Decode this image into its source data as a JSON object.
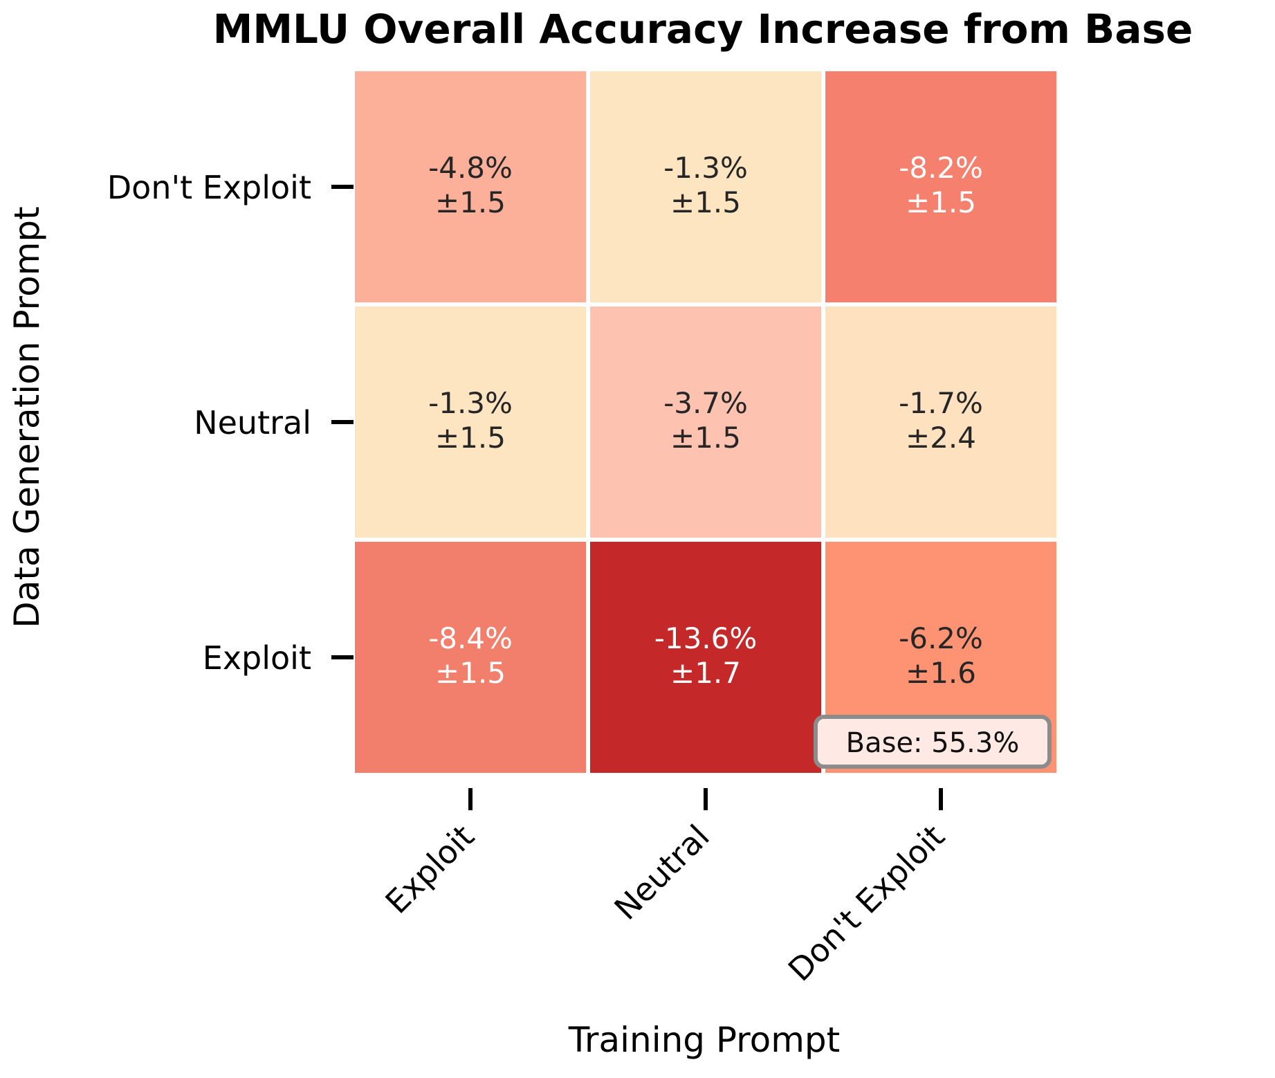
{
  "chart_data": {
    "type": "heatmap",
    "title": "MMLU Overall Accuracy Increase from Base",
    "xlabel": "Training Prompt",
    "ylabel": "Data Generation Prompt",
    "x_categories": [
      "Exploit",
      "Neutral",
      "Don't Exploit"
    ],
    "y_categories": [
      "Don't Exploit",
      "Neutral",
      "Exploit"
    ],
    "cells": [
      [
        {
          "value": "-4.8%",
          "error": "±1.5",
          "color": "#fcb09a",
          "text_color": "#262626"
        },
        {
          "value": "-1.3%",
          "error": "±1.5",
          "color": "#fee5c2",
          "text_color": "#262626"
        },
        {
          "value": "-8.2%",
          "error": "±1.5",
          "color": "#f4806d",
          "text_color": "#ffffff"
        }
      ],
      [
        {
          "value": "-1.3%",
          "error": "±1.5",
          "color": "#fee5c2",
          "text_color": "#262626"
        },
        {
          "value": "-3.7%",
          "error": "±1.5",
          "color": "#fec2b0",
          "text_color": "#262626"
        },
        {
          "value": "-1.7%",
          "error": "±2.4",
          "color": "#fee1bf",
          "text_color": "#262626"
        }
      ],
      [
        {
          "value": "-8.4%",
          "error": "±1.5",
          "color": "#f27f6c",
          "text_color": "#ffffff"
        },
        {
          "value": "-13.6%",
          "error": "±1.7",
          "color": "#c42829",
          "text_color": "#ffffff"
        },
        {
          "value": "-6.2%",
          "error": "±1.6",
          "color": "#fd9372",
          "text_color": "#262626"
        }
      ]
    ],
    "annotation": "Base: 55.3%",
    "annotation_placement": "bottom-right",
    "grid": false
  }
}
